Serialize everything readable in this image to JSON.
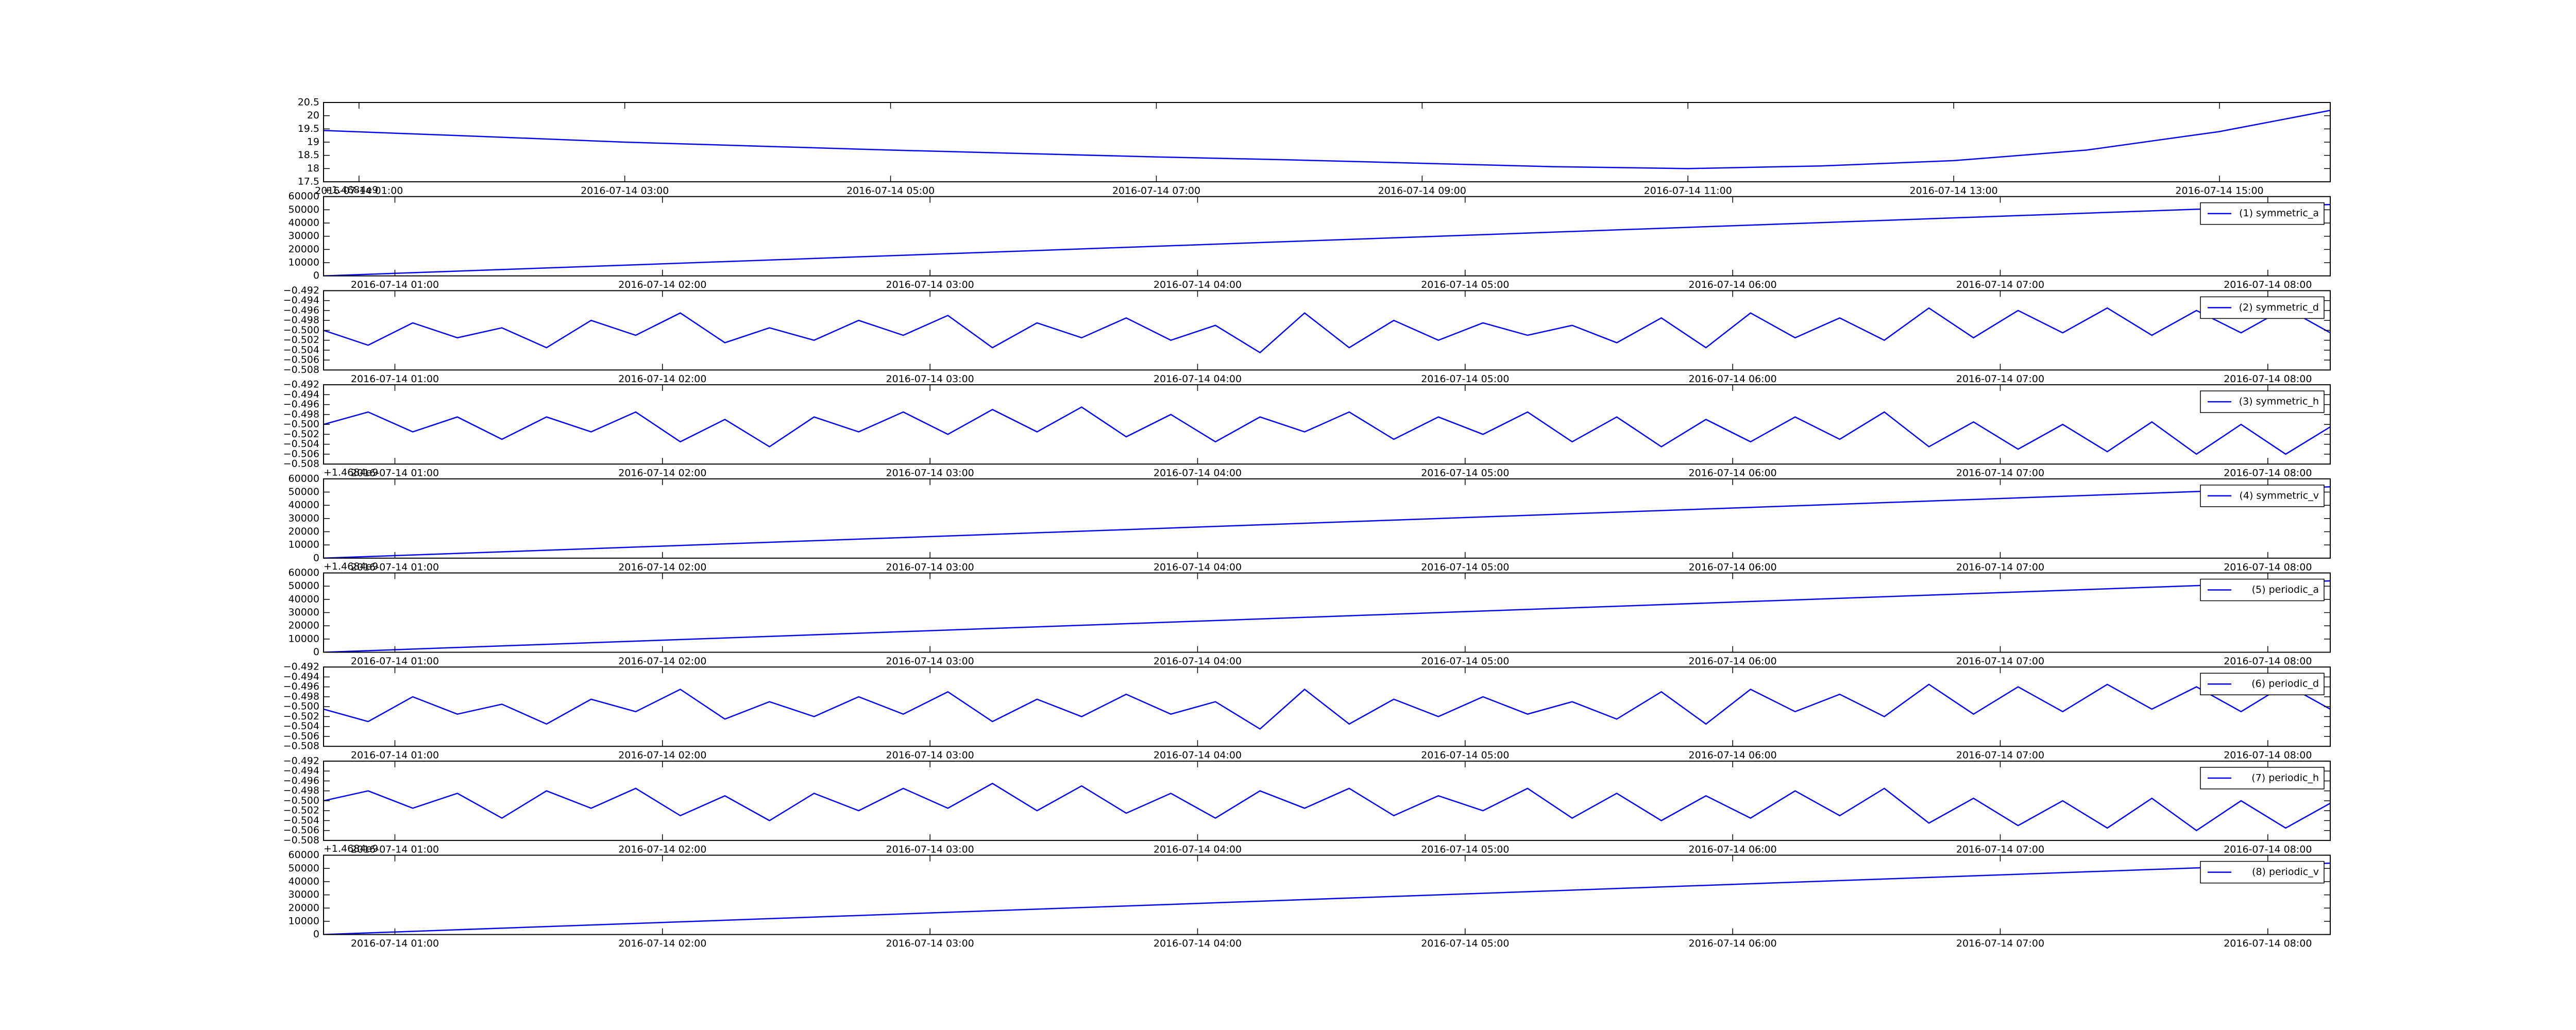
{
  "chart_data": [
    {
      "type": "line",
      "x": [
        "2016-07-14 00:44",
        "2016-07-14 02:00",
        "2016-07-14 03:00",
        "2016-07-14 04:00",
        "2016-07-14 05:00",
        "2016-07-14 06:00",
        "2016-07-14 07:00",
        "2016-07-14 08:00",
        "2016-07-14 09:00",
        "2016-07-14 10:00",
        "2016-07-14 11:00",
        "2016-07-14 12:00",
        "2016-07-14 13:00",
        "2016-07-14 14:00",
        "2016-07-14 15:00",
        "2016-07-14 15:50"
      ],
      "series": [
        {
          "color": "#0000ff",
          "values": [
            19.44,
            19.2,
            19.0,
            18.85,
            18.7,
            18.57,
            18.44,
            18.33,
            18.2,
            18.07,
            18.0,
            18.1,
            18.3,
            18.7,
            19.4,
            20.2
          ]
        }
      ],
      "xlim": [
        "2016-07-14 00:44",
        "2016-07-14 15:50"
      ],
      "xticks": [
        "2016-07-14 01:00",
        "2016-07-14 03:00",
        "2016-07-14 05:00",
        "2016-07-14 07:00",
        "2016-07-14 09:00",
        "2016-07-14 11:00",
        "2016-07-14 13:00",
        "2016-07-14 15:00"
      ],
      "ylim": [
        17.5,
        20.5
      ],
      "yticks": [
        17.5,
        18.0,
        18.5,
        19.0,
        19.5,
        20.0,
        20.5
      ]
    },
    {
      "type": "line",
      "x": [
        "2016-07-14 00:44",
        "2016-07-14 08:14"
      ],
      "series": [
        {
          "name": "(1) symmetric_a",
          "color": "#0000ff",
          "values": [
            0,
            54000
          ]
        }
      ],
      "xlim": [
        "2016-07-14 00:44",
        "2016-07-14 08:14"
      ],
      "xticks": [
        "2016-07-14 01:00",
        "2016-07-14 02:00",
        "2016-07-14 03:00",
        "2016-07-14 04:00",
        "2016-07-14 05:00",
        "2016-07-14 06:00",
        "2016-07-14 07:00",
        "2016-07-14 08:00"
      ],
      "ylim": [
        0,
        60000
      ],
      "yticks": [
        0,
        10000,
        20000,
        30000,
        40000,
        50000,
        60000
      ],
      "y_offset_label": "+1.4684e9",
      "legend": "upper right"
    },
    {
      "type": "line",
      "x": [
        "2016-07-14 00:44",
        "2016-07-14 00:54",
        "2016-07-14 01:04",
        "2016-07-14 01:14",
        "2016-07-14 01:24",
        "2016-07-14 01:34",
        "2016-07-14 01:44",
        "2016-07-14 01:54",
        "2016-07-14 02:04",
        "2016-07-14 02:14",
        "2016-07-14 02:24",
        "2016-07-14 02:34",
        "2016-07-14 02:44",
        "2016-07-14 02:54",
        "2016-07-14 03:04",
        "2016-07-14 03:14",
        "2016-07-14 03:24",
        "2016-07-14 03:34",
        "2016-07-14 03:44",
        "2016-07-14 03:54",
        "2016-07-14 04:04",
        "2016-07-14 04:14",
        "2016-07-14 04:24",
        "2016-07-14 04:34",
        "2016-07-14 04:44",
        "2016-07-14 04:54",
        "2016-07-14 05:04",
        "2016-07-14 05:14",
        "2016-07-14 05:24",
        "2016-07-14 05:34",
        "2016-07-14 05:44",
        "2016-07-14 05:54",
        "2016-07-14 06:04",
        "2016-07-14 06:14",
        "2016-07-14 06:24",
        "2016-07-14 06:34",
        "2016-07-14 06:44",
        "2016-07-14 06:54",
        "2016-07-14 07:04",
        "2016-07-14 07:14",
        "2016-07-14 07:24",
        "2016-07-14 07:34",
        "2016-07-14 07:44",
        "2016-07-14 07:54",
        "2016-07-14 08:04",
        "2016-07-14 08:14"
      ],
      "series": [
        {
          "name": "(2) symmetric_d",
          "color": "#0000ff",
          "values": [
            -0.5,
            -0.503,
            -0.4985,
            -0.5015,
            -0.4995,
            -0.5035,
            -0.498,
            -0.501,
            -0.4965,
            -0.5025,
            -0.4995,
            -0.502,
            -0.498,
            -0.501,
            -0.497,
            -0.5035,
            -0.4985,
            -0.5015,
            -0.4975,
            -0.502,
            -0.499,
            -0.5045,
            -0.4965,
            -0.5035,
            -0.498,
            -0.502,
            -0.4985,
            -0.501,
            -0.499,
            -0.5025,
            -0.4975,
            -0.5035,
            -0.4965,
            -0.5015,
            -0.4975,
            -0.502,
            -0.4955,
            -0.5015,
            -0.496,
            -0.5005,
            -0.4955,
            -0.501,
            -0.496,
            -0.5005,
            -0.4955,
            -0.5005
          ]
        }
      ],
      "xlim": [
        "2016-07-14 00:44",
        "2016-07-14 08:14"
      ],
      "xticks": [
        "2016-07-14 01:00",
        "2016-07-14 02:00",
        "2016-07-14 03:00",
        "2016-07-14 04:00",
        "2016-07-14 05:00",
        "2016-07-14 06:00",
        "2016-07-14 07:00",
        "2016-07-14 08:00"
      ],
      "ylim": [
        -0.508,
        -0.492
      ],
      "yticks": [
        {
          "value": -0.508,
          "label": "−0.508"
        },
        {
          "value": -0.506,
          "label": "−0.506"
        },
        {
          "value": -0.504,
          "label": "−0.504"
        },
        {
          "value": -0.502,
          "label": "−0.502"
        },
        {
          "value": -0.5,
          "label": "−0.500"
        },
        {
          "value": -0.498,
          "label": "−0.498"
        },
        {
          "value": -0.496,
          "label": "−0.496"
        },
        {
          "value": -0.494,
          "label": "−0.494"
        },
        {
          "value": -0.492,
          "label": "−0.492"
        }
      ],
      "legend": "upper right"
    },
    {
      "type": "line",
      "x": [
        "2016-07-14 00:44",
        "2016-07-14 00:54",
        "2016-07-14 01:04",
        "2016-07-14 01:14",
        "2016-07-14 01:24",
        "2016-07-14 01:34",
        "2016-07-14 01:44",
        "2016-07-14 01:54",
        "2016-07-14 02:04",
        "2016-07-14 02:14",
        "2016-07-14 02:24",
        "2016-07-14 02:34",
        "2016-07-14 02:44",
        "2016-07-14 02:54",
        "2016-07-14 03:04",
        "2016-07-14 03:14",
        "2016-07-14 03:24",
        "2016-07-14 03:34",
        "2016-07-14 03:44",
        "2016-07-14 03:54",
        "2016-07-14 04:04",
        "2016-07-14 04:14",
        "2016-07-14 04:24",
        "2016-07-14 04:34",
        "2016-07-14 04:44",
        "2016-07-14 04:54",
        "2016-07-14 05:04",
        "2016-07-14 05:14",
        "2016-07-14 05:24",
        "2016-07-14 05:34",
        "2016-07-14 05:44",
        "2016-07-14 05:54",
        "2016-07-14 06:04",
        "2016-07-14 06:14",
        "2016-07-14 06:24",
        "2016-07-14 06:34",
        "2016-07-14 06:44",
        "2016-07-14 06:54",
        "2016-07-14 07:04",
        "2016-07-14 07:14",
        "2016-07-14 07:24",
        "2016-07-14 07:34",
        "2016-07-14 07:44",
        "2016-07-14 07:54",
        "2016-07-14 08:04",
        "2016-07-14 08:14"
      ],
      "series": [
        {
          "name": "(3) symmetric_h",
          "color": "#0000ff",
          "values": [
            -0.5,
            -0.4975,
            -0.5015,
            -0.4985,
            -0.503,
            -0.4985,
            -0.5015,
            -0.4975,
            -0.5035,
            -0.499,
            -0.5045,
            -0.4985,
            -0.5015,
            -0.4975,
            -0.502,
            -0.497,
            -0.5015,
            -0.4965,
            -0.5025,
            -0.498,
            -0.5035,
            -0.4985,
            -0.5015,
            -0.4975,
            -0.503,
            -0.4985,
            -0.502,
            -0.4975,
            -0.5035,
            -0.4985,
            -0.5045,
            -0.499,
            -0.5035,
            -0.4985,
            -0.503,
            -0.4975,
            -0.5045,
            -0.4995,
            -0.505,
            -0.5,
            -0.5055,
            -0.4995,
            -0.506,
            -0.5,
            -0.506,
            -0.5005
          ]
        }
      ],
      "xlim": [
        "2016-07-14 00:44",
        "2016-07-14 08:14"
      ],
      "xticks": [
        "2016-07-14 01:00",
        "2016-07-14 02:00",
        "2016-07-14 03:00",
        "2016-07-14 04:00",
        "2016-07-14 05:00",
        "2016-07-14 06:00",
        "2016-07-14 07:00",
        "2016-07-14 08:00"
      ],
      "ylim": [
        -0.508,
        -0.492
      ],
      "yticks": [
        {
          "value": -0.508,
          "label": "−0.508"
        },
        {
          "value": -0.506,
          "label": "−0.506"
        },
        {
          "value": -0.504,
          "label": "−0.504"
        },
        {
          "value": -0.502,
          "label": "−0.502"
        },
        {
          "value": -0.5,
          "label": "−0.500"
        },
        {
          "value": -0.498,
          "label": "−0.498"
        },
        {
          "value": -0.496,
          "label": "−0.496"
        },
        {
          "value": -0.494,
          "label": "−0.494"
        },
        {
          "value": -0.492,
          "label": "−0.492"
        }
      ],
      "legend": "upper right"
    },
    {
      "type": "line",
      "x": [
        "2016-07-14 00:44",
        "2016-07-14 08:14"
      ],
      "series": [
        {
          "name": "(4) symmetric_v",
          "color": "#0000ff",
          "values": [
            0,
            54000
          ]
        }
      ],
      "xlim": [
        "2016-07-14 00:44",
        "2016-07-14 08:14"
      ],
      "xticks": [
        "2016-07-14 01:00",
        "2016-07-14 02:00",
        "2016-07-14 03:00",
        "2016-07-14 04:00",
        "2016-07-14 05:00",
        "2016-07-14 06:00",
        "2016-07-14 07:00",
        "2016-07-14 08:00"
      ],
      "ylim": [
        0,
        60000
      ],
      "yticks": [
        0,
        10000,
        20000,
        30000,
        40000,
        50000,
        60000
      ],
      "y_offset_label": "+1.4684e9",
      "legend": "upper right"
    },
    {
      "type": "line",
      "x": [
        "2016-07-14 00:44",
        "2016-07-14 08:14"
      ],
      "series": [
        {
          "name": "(5) periodic_a",
          "color": "#0000ff",
          "values": [
            0,
            54000
          ]
        }
      ],
      "xlim": [
        "2016-07-14 00:44",
        "2016-07-14 08:14"
      ],
      "xticks": [
        "2016-07-14 01:00",
        "2016-07-14 02:00",
        "2016-07-14 03:00",
        "2016-07-14 04:00",
        "2016-07-14 05:00",
        "2016-07-14 06:00",
        "2016-07-14 07:00",
        "2016-07-14 08:00"
      ],
      "ylim": [
        0,
        60000
      ],
      "yticks": [
        0,
        10000,
        20000,
        30000,
        40000,
        50000,
        60000
      ],
      "y_offset_label": "+1.4684e9",
      "legend": "upper right"
    },
    {
      "type": "line",
      "x": [
        "2016-07-14 00:44",
        "2016-07-14 00:54",
        "2016-07-14 01:04",
        "2016-07-14 01:14",
        "2016-07-14 01:24",
        "2016-07-14 01:34",
        "2016-07-14 01:44",
        "2016-07-14 01:54",
        "2016-07-14 02:04",
        "2016-07-14 02:14",
        "2016-07-14 02:24",
        "2016-07-14 02:34",
        "2016-07-14 02:44",
        "2016-07-14 02:54",
        "2016-07-14 03:04",
        "2016-07-14 03:14",
        "2016-07-14 03:24",
        "2016-07-14 03:34",
        "2016-07-14 03:44",
        "2016-07-14 03:54",
        "2016-07-14 04:04",
        "2016-07-14 04:14",
        "2016-07-14 04:24",
        "2016-07-14 04:34",
        "2016-07-14 04:44",
        "2016-07-14 04:54",
        "2016-07-14 05:04",
        "2016-07-14 05:14",
        "2016-07-14 05:24",
        "2016-07-14 05:34",
        "2016-07-14 05:44",
        "2016-07-14 05:54",
        "2016-07-14 06:04",
        "2016-07-14 06:14",
        "2016-07-14 06:24",
        "2016-07-14 06:34",
        "2016-07-14 06:44",
        "2016-07-14 06:54",
        "2016-07-14 07:04",
        "2016-07-14 07:14",
        "2016-07-14 07:24",
        "2016-07-14 07:34",
        "2016-07-14 07:44",
        "2016-07-14 07:54",
        "2016-07-14 08:04",
        "2016-07-14 08:14"
      ],
      "series": [
        {
          "name": "(6) periodic_d",
          "color": "#0000ff",
          "values": [
            -0.5005,
            -0.503,
            -0.498,
            -0.5015,
            -0.4995,
            -0.5035,
            -0.4985,
            -0.501,
            -0.4965,
            -0.5025,
            -0.499,
            -0.502,
            -0.498,
            -0.5015,
            -0.497,
            -0.503,
            -0.4985,
            -0.502,
            -0.4975,
            -0.5015,
            -0.499,
            -0.5045,
            -0.4965,
            -0.5035,
            -0.4985,
            -0.502,
            -0.498,
            -0.5015,
            -0.499,
            -0.5025,
            -0.497,
            -0.5035,
            -0.4965,
            -0.501,
            -0.4975,
            -0.502,
            -0.4955,
            -0.5015,
            -0.496,
            -0.501,
            -0.4955,
            -0.5005,
            -0.496,
            -0.501,
            -0.4955,
            -0.5005
          ]
        }
      ],
      "xlim": [
        "2016-07-14 00:44",
        "2016-07-14 08:14"
      ],
      "xticks": [
        "2016-07-14 01:00",
        "2016-07-14 02:00",
        "2016-07-14 03:00",
        "2016-07-14 04:00",
        "2016-07-14 05:00",
        "2016-07-14 06:00",
        "2016-07-14 07:00",
        "2016-07-14 08:00"
      ],
      "ylim": [
        -0.508,
        -0.492
      ],
      "yticks": [
        {
          "value": -0.508,
          "label": "−0.508"
        },
        {
          "value": -0.506,
          "label": "−0.506"
        },
        {
          "value": -0.504,
          "label": "−0.504"
        },
        {
          "value": -0.502,
          "label": "−0.502"
        },
        {
          "value": -0.5,
          "label": "−0.500"
        },
        {
          "value": -0.498,
          "label": "−0.498"
        },
        {
          "value": -0.496,
          "label": "−0.496"
        },
        {
          "value": -0.494,
          "label": "−0.494"
        },
        {
          "value": -0.492,
          "label": "−0.492"
        }
      ],
      "legend": "upper right"
    },
    {
      "type": "line",
      "x": [
        "2016-07-14 00:44",
        "2016-07-14 00:54",
        "2016-07-14 01:04",
        "2016-07-14 01:14",
        "2016-07-14 01:24",
        "2016-07-14 01:34",
        "2016-07-14 01:44",
        "2016-07-14 01:54",
        "2016-07-14 02:04",
        "2016-07-14 02:14",
        "2016-07-14 02:24",
        "2016-07-14 02:34",
        "2016-07-14 02:44",
        "2016-07-14 02:54",
        "2016-07-14 03:04",
        "2016-07-14 03:14",
        "2016-07-14 03:24",
        "2016-07-14 03:34",
        "2016-07-14 03:44",
        "2016-07-14 03:54",
        "2016-07-14 04:04",
        "2016-07-14 04:14",
        "2016-07-14 04:24",
        "2016-07-14 04:34",
        "2016-07-14 04:44",
        "2016-07-14 04:54",
        "2016-07-14 05:04",
        "2016-07-14 05:14",
        "2016-07-14 05:24",
        "2016-07-14 05:34",
        "2016-07-14 05:44",
        "2016-07-14 05:54",
        "2016-07-14 06:04",
        "2016-07-14 06:14",
        "2016-07-14 06:24",
        "2016-07-14 06:34",
        "2016-07-14 06:44",
        "2016-07-14 06:54",
        "2016-07-14 07:04",
        "2016-07-14 07:14",
        "2016-07-14 07:24",
        "2016-07-14 07:34",
        "2016-07-14 07:44",
        "2016-07-14 07:54",
        "2016-07-14 08:04",
        "2016-07-14 08:14"
      ],
      "series": [
        {
          "name": "(7) periodic_h",
          "color": "#0000ff",
          "values": [
            -0.5,
            -0.498,
            -0.5015,
            -0.4985,
            -0.5035,
            -0.498,
            -0.5015,
            -0.4975,
            -0.503,
            -0.499,
            -0.504,
            -0.4985,
            -0.502,
            -0.4975,
            -0.5015,
            -0.4965,
            -0.502,
            -0.497,
            -0.5025,
            -0.4985,
            -0.5035,
            -0.498,
            -0.5015,
            -0.4975,
            -0.503,
            -0.499,
            -0.502,
            -0.4975,
            -0.5035,
            -0.4985,
            -0.504,
            -0.499,
            -0.5035,
            -0.498,
            -0.503,
            -0.4975,
            -0.5045,
            -0.4995,
            -0.505,
            -0.5,
            -0.5055,
            -0.4995,
            -0.506,
            -0.5,
            -0.5055,
            -0.5005
          ]
        }
      ],
      "xlim": [
        "2016-07-14 00:44",
        "2016-07-14 08:14"
      ],
      "xticks": [
        "2016-07-14 01:00",
        "2016-07-14 02:00",
        "2016-07-14 03:00",
        "2016-07-14 04:00",
        "2016-07-14 05:00",
        "2016-07-14 06:00",
        "2016-07-14 07:00",
        "2016-07-14 08:00"
      ],
      "ylim": [
        -0.508,
        -0.492
      ],
      "yticks": [
        {
          "value": -0.508,
          "label": "−0.508"
        },
        {
          "value": -0.506,
          "label": "−0.506"
        },
        {
          "value": -0.504,
          "label": "−0.504"
        },
        {
          "value": -0.502,
          "label": "−0.502"
        },
        {
          "value": -0.5,
          "label": "−0.500"
        },
        {
          "value": -0.498,
          "label": "−0.498"
        },
        {
          "value": -0.496,
          "label": "−0.496"
        },
        {
          "value": -0.494,
          "label": "−0.494"
        },
        {
          "value": -0.492,
          "label": "−0.492"
        }
      ],
      "legend": "upper right"
    },
    {
      "type": "line",
      "x": [
        "2016-07-14 00:44",
        "2016-07-14 08:14"
      ],
      "series": [
        {
          "name": "(8) periodic_v",
          "color": "#0000ff",
          "values": [
            0,
            54000
          ]
        }
      ],
      "xlim": [
        "2016-07-14 00:44",
        "2016-07-14 08:14"
      ],
      "xticks": [
        "2016-07-14 01:00",
        "2016-07-14 02:00",
        "2016-07-14 03:00",
        "2016-07-14 04:00",
        "2016-07-14 05:00",
        "2016-07-14 06:00",
        "2016-07-14 07:00",
        "2016-07-14 08:00"
      ],
      "ylim": [
        0,
        60000
      ],
      "yticks": [
        0,
        10000,
        20000,
        30000,
        40000,
        50000,
        60000
      ],
      "y_offset_label": "+1.4684e9",
      "legend": "upper right"
    }
  ]
}
